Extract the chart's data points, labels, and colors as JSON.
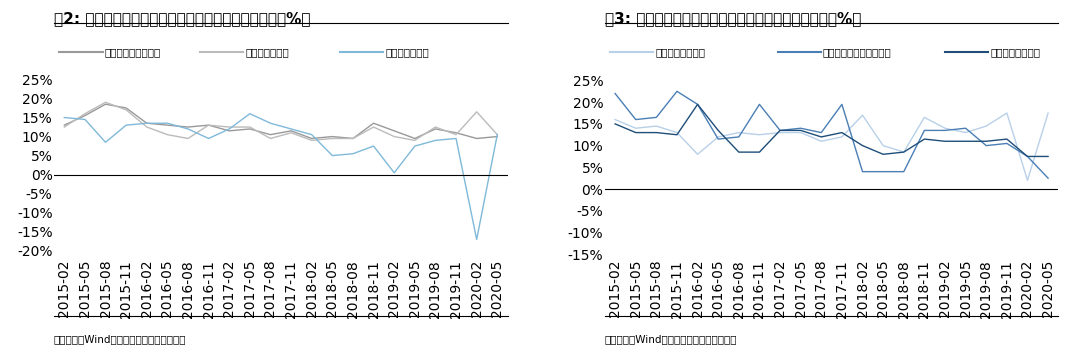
{
  "fig2_title": "图2: 限额以上单位商品零售：必选品类当月同比情况（%）",
  "fig3_title": "图3: 限额以上单位商品零售：必选品类当月同比情况（%）",
  "source_text": "资料来源：Wind、国信证券经济研究所整理",
  "fig2_legend": [
    "粮油食品零售额同比",
    "饮料零售额同比",
    "烟酒零售额同比"
  ],
  "fig3_legend": [
    "日用品零售额同比",
    "文化办公用品零售额同比",
    "中西药零售额同比"
  ],
  "fig2_colors": [
    "#999999",
    "#bbbbbb",
    "#7fb9d9"
  ],
  "fig3_colors": [
    "#b8d0e8",
    "#4a7fb5",
    "#1f4e79"
  ],
  "x_labels": [
    "2015-02",
    "2015-05",
    "2015-08",
    "2015-11",
    "2016-02",
    "2016-05",
    "2016-08",
    "2016-11",
    "2017-02",
    "2017-05",
    "2017-08",
    "2017-11",
    "2018-02",
    "2018-05",
    "2018-08",
    "2018-11",
    "2019-02",
    "2019-05",
    "2019-08",
    "2019-11",
    "2020-02",
    "2020-05"
  ],
  "ylim1": [
    -22,
    27
  ],
  "ylim2": [
    -16,
    27
  ],
  "yticks1": [
    -20,
    -15,
    -10,
    -5,
    0,
    5,
    10,
    15,
    20,
    25
  ],
  "yticks2": [
    -15,
    -10,
    -5,
    0,
    5,
    10,
    15,
    20,
    25
  ],
  "fig2_series1": [
    13.0,
    15.5,
    18.5,
    17.5,
    13.5,
    13.0,
    12.5,
    13.0,
    11.5,
    12.0,
    10.5,
    11.5,
    9.5,
    10.0,
    9.5,
    13.5,
    11.5,
    9.5,
    12.0,
    11.0,
    9.5,
    10.0
  ],
  "fig2_series2": [
    12.5,
    16.0,
    19.0,
    17.0,
    12.5,
    10.5,
    9.5,
    13.0,
    12.5,
    12.5,
    9.5,
    11.0,
    9.0,
    9.5,
    9.5,
    12.5,
    10.0,
    9.0,
    12.5,
    10.5,
    16.5,
    10.5
  ],
  "fig2_series3": [
    15.0,
    14.5,
    8.5,
    13.0,
    13.5,
    13.5,
    12.0,
    9.5,
    12.0,
    16.0,
    13.5,
    12.0,
    10.5,
    5.0,
    5.5,
    7.5,
    0.5,
    7.5,
    9.0,
    9.5,
    -17.0,
    10.5
  ],
  "fig3_series1": [
    16.0,
    14.0,
    14.5,
    13.0,
    8.0,
    12.0,
    13.0,
    12.5,
    13.0,
    13.0,
    11.0,
    12.0,
    17.0,
    10.0,
    8.5,
    16.5,
    14.0,
    13.0,
    14.5,
    17.5,
    2.0,
    17.5
  ],
  "fig3_series2": [
    22.0,
    16.0,
    16.5,
    22.5,
    19.5,
    11.5,
    12.0,
    19.5,
    13.5,
    14.0,
    13.0,
    19.5,
    4.0,
    4.0,
    4.0,
    13.5,
    13.5,
    14.0,
    10.0,
    10.5,
    7.5,
    2.5
  ],
  "fig3_series3": [
    15.0,
    13.0,
    13.0,
    12.5,
    19.5,
    13.5,
    8.5,
    8.5,
    13.5,
    13.5,
    12.0,
    13.0,
    10.0,
    8.0,
    8.5,
    11.5,
    11.0,
    11.0,
    11.0,
    11.5,
    7.5,
    7.5
  ],
  "background_color": "#ffffff",
  "title_fontsize": 11,
  "legend_fontsize": 7.5,
  "tick_fontsize": 6.5,
  "source_fontsize": 7.5
}
